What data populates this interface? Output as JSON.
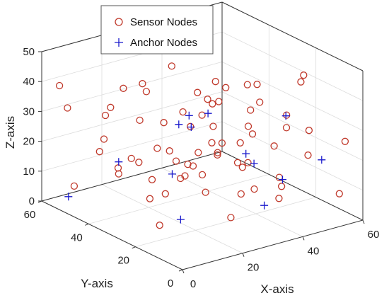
{
  "chart_data": {
    "type": "scatter3d",
    "title": "",
    "xlabel": "X-axis",
    "ylabel": "Y-axis",
    "zlabel": "Z-axis",
    "xlim": [
      0,
      60
    ],
    "ylim": [
      0,
      60
    ],
    "zlim": [
      0,
      50
    ],
    "x_ticks": [
      "0",
      "20",
      "40",
      "60"
    ],
    "y_ticks": [
      "0",
      "20",
      "40",
      "60"
    ],
    "z_ticks": [
      "0",
      "10",
      "20",
      "30",
      "40",
      "50"
    ],
    "grid": true,
    "legend_position": "top-center",
    "series": [
      {
        "name": "Sensor Nodes",
        "marker": "circle",
        "color": "#c0392b",
        "points": [
          [
            2,
            55,
            40
          ],
          [
            7,
            58,
            30
          ],
          [
            22,
            28,
            36
          ],
          [
            44,
            50,
            28
          ],
          [
            30,
            20,
            45
          ],
          [
            52,
            42,
            12
          ],
          [
            40,
            10,
            16
          ],
          [
            15,
            30,
            25
          ],
          [
            35,
            15,
            30
          ],
          [
            10,
            40,
            14
          ],
          [
            27,
            50,
            33
          ],
          [
            48,
            8,
            22
          ],
          [
            20,
            5,
            10
          ],
          [
            5,
            25,
            25
          ],
          [
            58,
            30,
            20
          ],
          [
            31,
            33,
            18
          ],
          [
            17,
            47,
            38
          ],
          [
            39,
            25,
            5
          ],
          [
            12,
            12,
            40
          ],
          [
            25,
            40,
            27
          ],
          [
            45,
            30,
            38
          ],
          [
            3,
            50,
            8
          ],
          [
            33,
            45,
            10
          ],
          [
            60,
            10,
            5
          ],
          [
            50,
            50,
            30
          ],
          [
            28,
            8,
            25
          ],
          [
            18,
            22,
            18
          ],
          [
            38,
            38,
            32
          ],
          [
            8,
            8,
            30
          ],
          [
            55,
            20,
            40
          ],
          [
            22,
            50,
            12
          ],
          [
            43,
            42,
            20
          ],
          [
            14,
            35,
            45
          ],
          [
            36,
            5,
            12
          ],
          [
            47,
            18,
            8
          ],
          [
            9,
            45,
            24
          ],
          [
            26,
            25,
            35
          ],
          [
            57,
            45,
            15
          ],
          [
            32,
            12,
            40
          ],
          [
            19,
            55,
            28
          ],
          [
            41,
            48,
            5
          ],
          [
            6,
            15,
            18
          ],
          [
            53,
            35,
            28
          ],
          [
            29,
            38,
            8
          ],
          [
            24,
            18,
            42
          ],
          [
            46,
            5,
            32
          ],
          [
            11,
            28,
            10
          ],
          [
            35,
            28,
            22
          ],
          [
            16,
            8,
            35
          ],
          [
            50,
            25,
            18
          ],
          [
            4,
            38,
            36
          ],
          [
            37,
            52,
            38
          ],
          [
            21,
            12,
            28
          ],
          [
            58,
            5,
            25
          ],
          [
            42,
            22,
            42
          ],
          [
            13,
            52,
            16
          ],
          [
            30,
            30,
            12
          ],
          [
            48,
            38,
            8
          ],
          [
            23,
            35,
            20
          ],
          [
            55,
            55,
            20
          ],
          [
            8,
            20,
            5
          ],
          [
            34,
            18,
            18
          ],
          [
            44,
            12,
            35
          ],
          [
            17,
            40,
            30
          ],
          [
            27,
            4,
            18
          ],
          [
            39,
            35,
            15
          ],
          [
            2,
            30,
            22
          ],
          [
            52,
            15,
            45
          ],
          [
            25,
            45,
            6
          ],
          [
            10,
            3,
            22
          ]
        ]
      },
      {
        "name": "Anchor Nodes",
        "marker": "plus",
        "color": "#1a1acc",
        "points": [
          [
            10,
            10,
            45
          ],
          [
            40,
            50,
            45
          ],
          [
            25,
            5,
            30
          ],
          [
            50,
            20,
            30
          ],
          [
            30,
            40,
            25
          ],
          [
            10,
            40,
            18
          ],
          [
            45,
            15,
            12
          ],
          [
            20,
            30,
            15
          ],
          [
            35,
            10,
            8
          ],
          [
            5,
            55,
            2
          ],
          [
            55,
            40,
            5
          ],
          [
            15,
            20,
            5
          ],
          [
            28,
            25,
            35
          ],
          [
            58,
            15,
            15
          ],
          [
            38,
            45,
            20
          ]
        ]
      }
    ]
  }
}
